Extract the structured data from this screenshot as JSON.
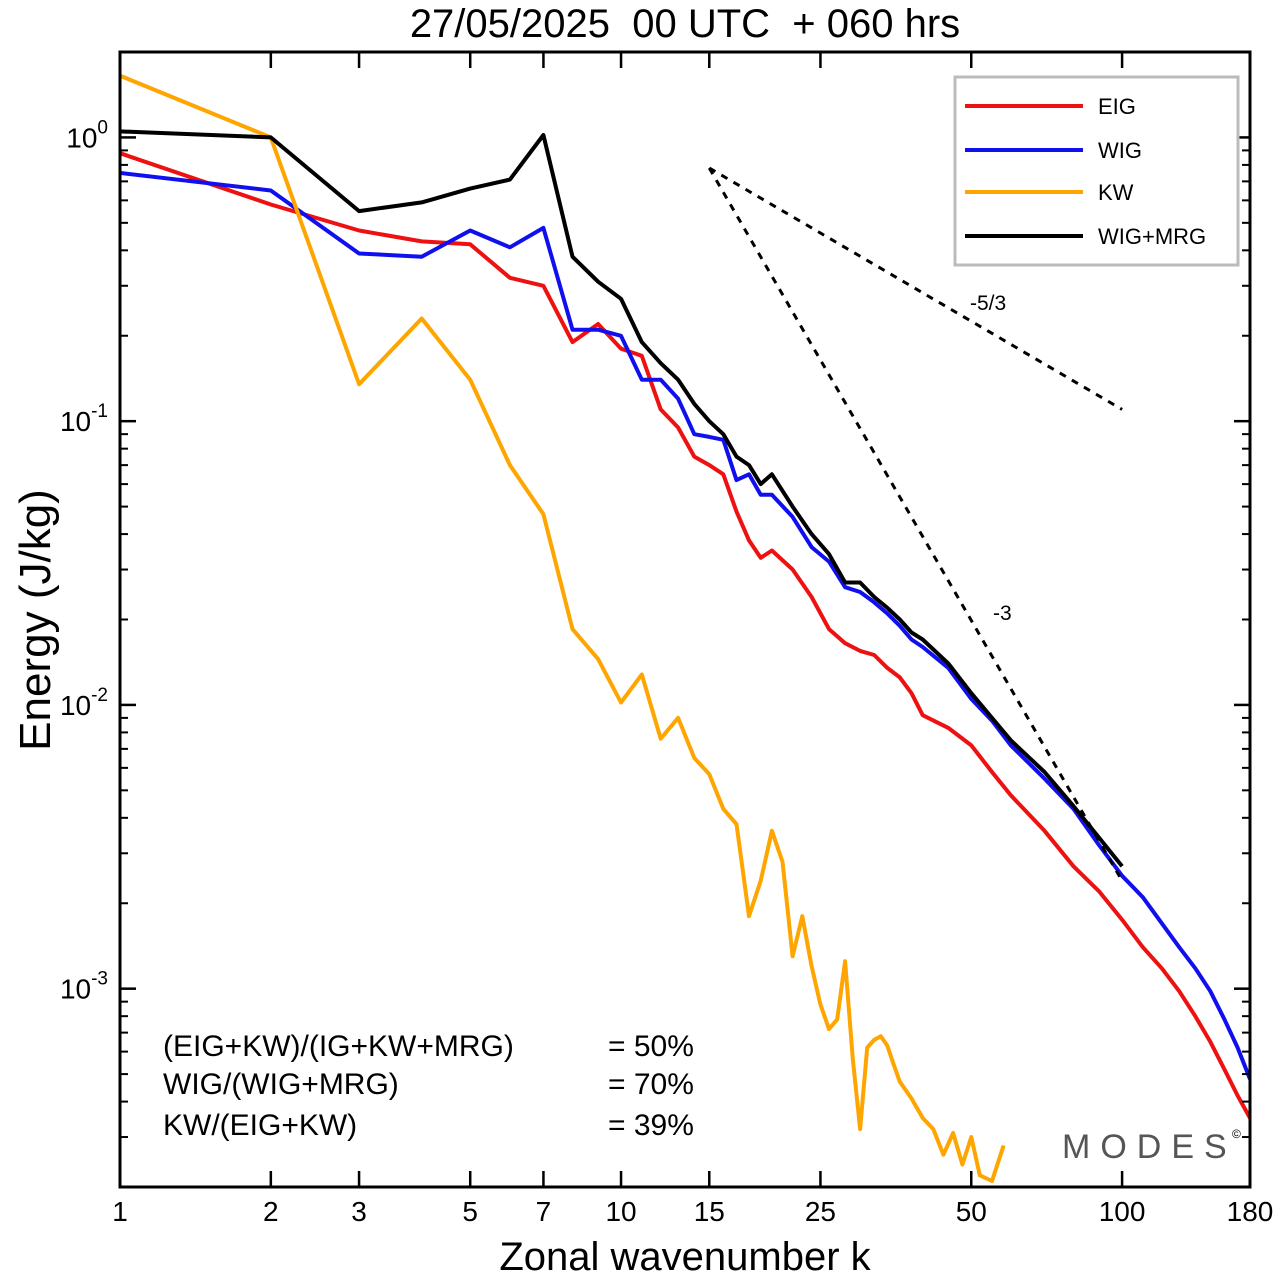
{
  "chart_data": {
    "type": "line",
    "title": "27/05/2025  00 UTC  + 060 hrs",
    "xlabel": "Zonal wavenumber k",
    "ylabel": "Energy (J/kg)",
    "xscale": "log",
    "yscale": "log",
    "xlim": [
      1,
      180
    ],
    "ylim": [
      0.0002,
      2
    ],
    "x_ticks": [
      1,
      2,
      3,
      5,
      7,
      10,
      15,
      25,
      50,
      100,
      180
    ],
    "x_tick_labels": [
      "1",
      "2",
      "3",
      "5",
      "7",
      "10",
      "15",
      "25",
      "50",
      "100",
      "180"
    ],
    "y_ticks": [
      {
        "value": 1,
        "base": "10",
        "exp": "0"
      },
      {
        "value": 0.1,
        "base": "10",
        "exp": "-1"
      },
      {
        "value": 0.01,
        "base": "10",
        "exp": "-2"
      },
      {
        "value": 0.001,
        "base": "10",
        "exp": "-3"
      }
    ],
    "legend_position": "top-right",
    "series": [
      {
        "name": "EIG",
        "color": "#ee1111",
        "x": [
          1,
          2,
          3,
          4,
          5,
          6,
          7,
          8,
          9,
          10,
          11,
          12,
          13,
          14,
          15,
          16,
          17,
          18,
          19,
          20,
          22,
          24,
          26,
          28,
          30,
          32,
          34,
          36,
          38,
          40,
          45,
          50,
          55,
          60,
          70,
          80,
          90,
          100,
          110,
          120,
          130,
          140,
          150,
          160,
          170,
          180
        ],
        "y": [
          0.88,
          0.58,
          0.47,
          0.43,
          0.42,
          0.32,
          0.3,
          0.19,
          0.22,
          0.18,
          0.17,
          0.11,
          0.095,
          0.075,
          0.07,
          0.065,
          0.048,
          0.038,
          0.033,
          0.035,
          0.03,
          0.024,
          0.0185,
          0.0165,
          0.0155,
          0.015,
          0.0135,
          0.0125,
          0.011,
          0.0092,
          0.0083,
          0.0072,
          0.0058,
          0.0048,
          0.0036,
          0.0027,
          0.0022,
          0.00175,
          0.0014,
          0.00118,
          0.00098,
          0.0008,
          0.00065,
          0.00052,
          0.00042,
          0.00035
        ]
      },
      {
        "name": "WIG",
        "color": "#1010ee",
        "x": [
          1,
          2,
          3,
          4,
          5,
          6,
          7,
          8,
          9,
          10,
          11,
          12,
          13,
          14,
          15,
          16,
          17,
          18,
          19,
          20,
          22,
          24,
          26,
          28,
          30,
          32,
          34,
          36,
          38,
          40,
          45,
          50,
          55,
          60,
          70,
          80,
          90,
          100,
          110,
          120,
          130,
          140,
          150,
          160,
          170,
          180
        ],
        "y": [
          0.75,
          0.65,
          0.39,
          0.38,
          0.47,
          0.41,
          0.48,
          0.21,
          0.21,
          0.2,
          0.14,
          0.14,
          0.12,
          0.09,
          0.088,
          0.086,
          0.062,
          0.065,
          0.055,
          0.055,
          0.046,
          0.036,
          0.032,
          0.026,
          0.025,
          0.023,
          0.021,
          0.019,
          0.017,
          0.016,
          0.0135,
          0.0105,
          0.0088,
          0.0072,
          0.0055,
          0.0043,
          0.0032,
          0.0025,
          0.0021,
          0.0017,
          0.0014,
          0.00118,
          0.00098,
          0.00078,
          0.00062,
          0.00048
        ]
      },
      {
        "name": "KW",
        "color": "#ffa500",
        "x": [
          1,
          2,
          3,
          4,
          5,
          6,
          7,
          8,
          9,
          10,
          11,
          12,
          13,
          14,
          15,
          16,
          17,
          18,
          19,
          20,
          21,
          22,
          23,
          24,
          25,
          26,
          27,
          28,
          29,
          30,
          31,
          32,
          33,
          34,
          35,
          36,
          38,
          40,
          42,
          44,
          46,
          48,
          50,
          52,
          55,
          58
        ],
        "y": [
          1.65,
          1.0,
          0.135,
          0.23,
          0.14,
          0.07,
          0.047,
          0.0185,
          0.0145,
          0.0102,
          0.0128,
          0.0076,
          0.009,
          0.0065,
          0.0057,
          0.0043,
          0.0038,
          0.0018,
          0.0024,
          0.0036,
          0.0028,
          0.0013,
          0.0018,
          0.0012,
          0.00088,
          0.00072,
          0.00078,
          0.00125,
          0.00057,
          0.00032,
          0.00062,
          0.00066,
          0.00068,
          0.00063,
          0.00054,
          0.00047,
          0.00041,
          0.00035,
          0.00032,
          0.00026,
          0.00031,
          0.00024,
          0.0003,
          0.00022,
          0.00021,
          0.00028
        ]
      },
      {
        "name": "WIG+MRG",
        "color": "#000000",
        "x": [
          1,
          2,
          3,
          4,
          5,
          6,
          7,
          8,
          9,
          10,
          11,
          12,
          13,
          14,
          15,
          16,
          17,
          18,
          19,
          20,
          22,
          24,
          26,
          28,
          30,
          32,
          34,
          36,
          38,
          40,
          45,
          50,
          55,
          60,
          70,
          80,
          90,
          100
        ],
        "y": [
          1.05,
          1.0,
          0.55,
          0.59,
          0.66,
          0.71,
          1.02,
          0.38,
          0.31,
          0.27,
          0.19,
          0.16,
          0.14,
          0.115,
          0.1,
          0.09,
          0.075,
          0.07,
          0.06,
          0.065,
          0.05,
          0.04,
          0.034,
          0.027,
          0.027,
          0.024,
          0.022,
          0.02,
          0.018,
          0.017,
          0.014,
          0.011,
          0.009,
          0.0075,
          0.0058,
          0.0044,
          0.0034,
          0.0027
        ]
      }
    ],
    "reference_lines": [
      {
        "label": "-5/3",
        "x": [
          15,
          100
        ],
        "y": [
          0.78,
          0.11
        ]
      },
      {
        "label": "-3",
        "x": [
          15,
          100
        ],
        "y": [
          0.78,
          0.0024
        ]
      }
    ],
    "annotations": [
      {
        "label": "(EIG+KW)/(IG+KW+MRG)",
        "value": "= 50%"
      },
      {
        "label": "WIG/(WIG+MRG)",
        "value": "= 70%"
      },
      {
        "label": "KW/(EIG+KW)",
        "value": "= 39%"
      }
    ],
    "brand": "MODES",
    "brand_mark": "©"
  }
}
